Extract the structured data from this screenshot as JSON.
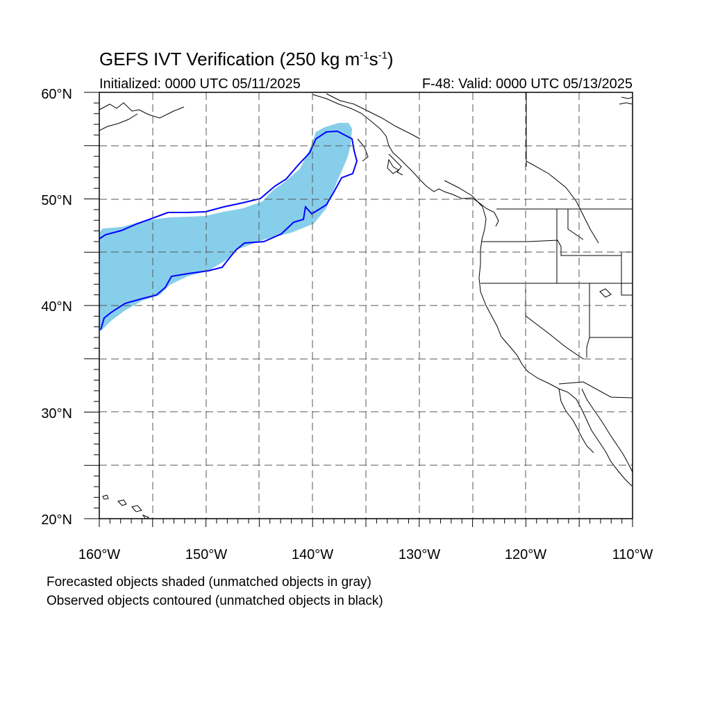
{
  "title": {
    "main": "GEFS IVT Verification (250 kg m",
    "exp1": "-1",
    "mid": "s",
    "exp2": "-1",
    "end": ")"
  },
  "subtitle": {
    "left": "Initialized: 0000 UTC 05/11/2025",
    "right": "F-48: Valid: 0000 UTC 05/13/2025"
  },
  "map": {
    "lon_range": [
      -160,
      -110
    ],
    "lat_range": [
      20,
      60
    ],
    "lat_labels": [
      "60°N",
      "50°N",
      "40°N",
      "30°N",
      "20°N"
    ],
    "lon_labels": [
      "160°W",
      "150°W",
      "140°W",
      "130°W",
      "120°W",
      "110°W"
    ],
    "forecast_fill_color": "#87ceeb",
    "observed_contour_color": "#0000ff",
    "coastline_color": "#000000",
    "grid": true
  },
  "notes": {
    "line1": "Forecasted objects shaded (unmatched objects in gray)",
    "line2": "Observed objects contoured (unmatched objects in black)"
  }
}
